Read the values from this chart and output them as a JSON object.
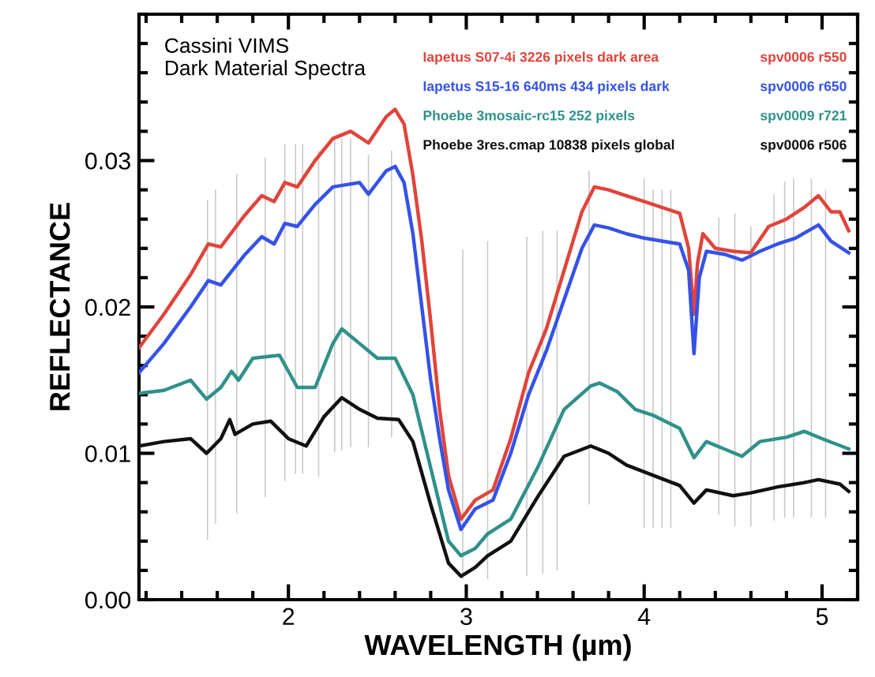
{
  "chart_data": {
    "type": "line",
    "title": "Cassini VIMS\nDark Material Spectra",
    "xlabel": "WAVELENGTH (µm)",
    "ylabel": "REFLECTANCE",
    "xlim": [
      1.16,
      5.2
    ],
    "ylim": [
      0,
      0.04
    ],
    "xticks": [
      2,
      3,
      4,
      5
    ],
    "yticks": [
      {
        "value": 0,
        "label": "0.00"
      },
      {
        "value": 0.01,
        "label": "0.01"
      },
      {
        "value": 0.02,
        "label": "0.02"
      },
      {
        "value": 0.03,
        "label": "0.03"
      }
    ],
    "grid": false,
    "legend": "top right",
    "marker": "none",
    "line_style": "solid",
    "annotations": [
      "spv0006 r550",
      "spv0006 r650",
      "spv0009 r721",
      "spv0006 r506"
    ],
    "series": [
      {
        "type": "bar",
        "color": "#c8c8c8",
        "x": [
          1.545,
          1.59,
          1.71,
          1.87,
          1.98,
          2.04,
          2.08,
          2.17,
          2.26,
          2.3,
          2.35,
          2.45,
          2.58,
          2.98,
          3.12,
          3.34,
          3.43,
          3.51,
          3.69,
          4.0,
          4.05,
          4.1,
          4.15,
          4.42,
          4.51,
          4.6,
          4.73,
          4.79,
          4.84,
          4.94,
          5.02
        ],
        "base": [
          0.0041,
          0.0052,
          0.0059,
          0.007,
          0.0081,
          0.0086,
          0.0086,
          0.0084,
          0.0101,
          0.0102,
          0.0104,
          0.0104,
          0.0111,
          0.0014,
          0.0014,
          0.0016,
          0.0018,
          0.002,
          0.0065,
          0.0049,
          0.0049,
          0.0049,
          0.0049,
          0.0058,
          0.005,
          0.005,
          0.0054,
          0.0056,
          0.0056,
          0.0056,
          0.0056
        ],
        "values": [
          0.0232,
          0.0228,
          0.0232,
          0.0232,
          0.023,
          0.0225,
          0.0225,
          0.0223,
          0.0214,
          0.0213,
          0.0211,
          0.02,
          0.0196,
          0.0225,
          0.0231,
          0.0232,
          0.0234,
          0.0232,
          0.0228,
          0.0239,
          0.0231,
          0.0231,
          0.0231,
          0.0203,
          0.0214,
          0.0205,
          0.0223,
          0.023,
          0.0232,
          0.0232,
          0.0224
        ]
      },
      {
        "name": "Iapetus S07-4i 3226 pixels dark area",
        "color": "#e0443a",
        "x": [
          1.16,
          1.3,
          1.45,
          1.55,
          1.62,
          1.75,
          1.85,
          1.92,
          1.98,
          2.05,
          2.15,
          2.25,
          2.35,
          2.45,
          2.55,
          2.6,
          2.65,
          2.7,
          2.75,
          2.8,
          2.85,
          2.9,
          2.97,
          3.05,
          3.15,
          3.25,
          3.35,
          3.45,
          3.55,
          3.65,
          3.72,
          3.8,
          3.9,
          4.0,
          4.1,
          4.2,
          4.25,
          4.28,
          4.3,
          4.33,
          4.4,
          4.5,
          4.6,
          4.7,
          4.8,
          4.9,
          4.98,
          5.05,
          5.1,
          5.15
        ],
        "values": [
          0.0172,
          0.0195,
          0.0222,
          0.0243,
          0.0241,
          0.0262,
          0.0276,
          0.0272,
          0.0285,
          0.0282,
          0.03,
          0.0315,
          0.032,
          0.0312,
          0.033,
          0.0335,
          0.0325,
          0.029,
          0.0245,
          0.019,
          0.013,
          0.0085,
          0.0055,
          0.0068,
          0.0075,
          0.011,
          0.0155,
          0.0185,
          0.0225,
          0.0265,
          0.0282,
          0.028,
          0.0276,
          0.0272,
          0.0268,
          0.0264,
          0.024,
          0.0195,
          0.023,
          0.025,
          0.024,
          0.0238,
          0.0237,
          0.0255,
          0.026,
          0.0268,
          0.0276,
          0.0265,
          0.0265,
          0.0252
        ]
      },
      {
        "name": "Iapetus S15-16 640ms 434 pixels dark",
        "color": "#3552e8",
        "x": [
          1.16,
          1.3,
          1.45,
          1.55,
          1.62,
          1.75,
          1.85,
          1.92,
          1.98,
          2.05,
          2.15,
          2.25,
          2.4,
          2.45,
          2.55,
          2.6,
          2.65,
          2.7,
          2.75,
          2.8,
          2.85,
          2.9,
          2.97,
          3.05,
          3.15,
          3.25,
          3.35,
          3.45,
          3.55,
          3.65,
          3.72,
          3.8,
          3.9,
          4.0,
          4.1,
          4.2,
          4.25,
          4.28,
          4.31,
          4.35,
          4.45,
          4.55,
          4.65,
          4.75,
          4.85,
          4.98,
          5.05,
          5.15
        ],
        "values": [
          0.0155,
          0.0175,
          0.02,
          0.0218,
          0.0215,
          0.0235,
          0.0248,
          0.0243,
          0.0257,
          0.0255,
          0.027,
          0.0282,
          0.0285,
          0.0277,
          0.0293,
          0.0296,
          0.0285,
          0.025,
          0.02,
          0.015,
          0.011,
          0.0075,
          0.0048,
          0.0062,
          0.0068,
          0.01,
          0.014,
          0.017,
          0.0205,
          0.024,
          0.0256,
          0.0254,
          0.025,
          0.0247,
          0.0245,
          0.0243,
          0.0225,
          0.0168,
          0.022,
          0.0238,
          0.0236,
          0.0232,
          0.0238,
          0.0243,
          0.0247,
          0.0256,
          0.0245,
          0.0237
        ]
      },
      {
        "name": "Phoebe 3mosaic-rc15 252 pixels",
        "color": "#2f918a",
        "x": [
          1.16,
          1.3,
          1.45,
          1.54,
          1.62,
          1.68,
          1.72,
          1.8,
          1.95,
          2.05,
          2.15,
          2.25,
          2.3,
          2.4,
          2.5,
          2.6,
          2.7,
          2.8,
          2.9,
          2.97,
          3.05,
          3.12,
          3.25,
          3.4,
          3.55,
          3.7,
          3.75,
          3.85,
          3.95,
          4.05,
          4.2,
          4.28,
          4.35,
          4.45,
          4.55,
          4.65,
          4.8,
          4.9,
          5.0,
          5.15
        ],
        "values": [
          0.0141,
          0.0143,
          0.015,
          0.0137,
          0.0145,
          0.0156,
          0.015,
          0.0165,
          0.0167,
          0.0145,
          0.0145,
          0.0175,
          0.0185,
          0.0175,
          0.0165,
          0.0165,
          0.014,
          0.009,
          0.004,
          0.003,
          0.0035,
          0.0045,
          0.0055,
          0.009,
          0.013,
          0.0146,
          0.0148,
          0.0142,
          0.013,
          0.0126,
          0.0117,
          0.0097,
          0.0108,
          0.0103,
          0.0098,
          0.0108,
          0.0111,
          0.0115,
          0.011,
          0.0103
        ]
      },
      {
        "name": "Phoebe 3res.cmap 10838 pixels global",
        "color": "#111111",
        "x": [
          1.16,
          1.3,
          1.45,
          1.54,
          1.62,
          1.67,
          1.7,
          1.8,
          1.9,
          2.0,
          2.1,
          2.2,
          2.3,
          2.4,
          2.5,
          2.62,
          2.7,
          2.8,
          2.9,
          2.97,
          3.05,
          3.12,
          3.25,
          3.4,
          3.55,
          3.7,
          3.8,
          3.9,
          4.05,
          4.2,
          4.28,
          4.35,
          4.5,
          4.6,
          4.75,
          4.9,
          4.98,
          5.1,
          5.15
        ],
        "values": [
          0.0105,
          0.0108,
          0.011,
          0.01,
          0.011,
          0.0123,
          0.0113,
          0.012,
          0.0122,
          0.011,
          0.0105,
          0.0125,
          0.0138,
          0.013,
          0.0124,
          0.0123,
          0.0108,
          0.0065,
          0.0025,
          0.0016,
          0.0022,
          0.003,
          0.004,
          0.007,
          0.0098,
          0.0105,
          0.01,
          0.0092,
          0.0085,
          0.0078,
          0.0066,
          0.0075,
          0.0071,
          0.0073,
          0.0077,
          0.008,
          0.0082,
          0.0079,
          0.0074
        ]
      }
    ]
  }
}
